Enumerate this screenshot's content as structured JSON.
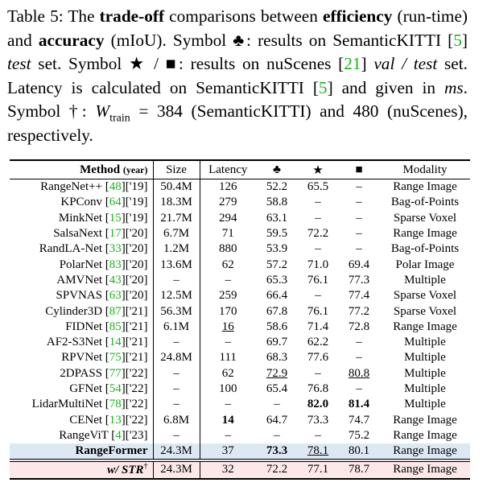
{
  "caption": {
    "parts": [
      "Table 5: The ",
      "trade-off",
      " comparisons between ",
      "efficiency",
      " (run-time) and ",
      "accuracy",
      " (mIoU). Symbol ♣: results on SemanticKITTI [",
      "5",
      "] ",
      "test",
      " set. Symbol ★ / ■: results on nuScenes [",
      "21",
      "] ",
      "val / test",
      " set. Latency is calculated on SemanticKITTI [",
      "5",
      "] and given in ",
      "ms",
      ". Symbol †: ",
      "W",
      "train",
      " = 384 (SemanticKITTI) and 480 (nuScenes), respectively."
    ]
  },
  "table": {
    "header": [
      "Method",
      "(year)",
      "Size",
      "Latency",
      "♣",
      "★",
      "■",
      "Modality"
    ],
    "rows": [
      {
        "method": [
          "RangeNet++ [",
          "48",
          "]['19]"
        ],
        "cells": [
          "50.4M",
          "126",
          "52.2",
          "65.5",
          "–",
          "Range Image"
        ]
      },
      {
        "method": [
          "KPConv [",
          "64",
          "]['19]"
        ],
        "cells": [
          "18.3M",
          "279",
          "58.8",
          "–",
          "–",
          "Bag-of-Points"
        ]
      },
      {
        "method": [
          "MinkNet [",
          "15",
          "]['19]"
        ],
        "cells": [
          "21.7M",
          "294",
          "63.1",
          "–",
          "–",
          "Sparse Voxel"
        ]
      },
      {
        "method": [
          "SalsaNext [",
          "17",
          "]['20]"
        ],
        "cells": [
          "6.7M",
          "71",
          "59.5",
          "72.2",
          "–",
          "Range Image"
        ]
      },
      {
        "method": [
          "RandLA-Net [",
          "33",
          "]['20]"
        ],
        "cells": [
          "1.2M",
          "880",
          "53.9",
          "–",
          "–",
          "Bag-of-Points"
        ]
      },
      {
        "method": [
          "PolarNet [",
          "83",
          "]['20]"
        ],
        "cells": [
          "13.6M",
          "62",
          "57.2",
          "71.0",
          "69.4",
          "Polar Image"
        ]
      },
      {
        "method": [
          "AMVNet [",
          "43",
          "]['20]"
        ],
        "cells": [
          "–",
          "–",
          "65.3",
          "76.1",
          "77.3",
          "Multiple"
        ]
      },
      {
        "method": [
          "SPVNAS [",
          "63",
          "]['20]"
        ],
        "cells": [
          "12.5M",
          "259",
          "66.4",
          "–",
          "77.4",
          "Sparse Voxel"
        ]
      },
      {
        "method": [
          "Cylinder3D [",
          "87",
          "]['21]"
        ],
        "cells": [
          "56.3M",
          "170",
          "67.8",
          "76.1",
          "77.2",
          "Sparse Voxel"
        ]
      },
      {
        "method": [
          "FIDNet [",
          "85",
          "]['21]"
        ],
        "cells": [
          "6.1M",
          "16",
          "58.6",
          "71.4",
          "72.8",
          "Range Image"
        ]
      },
      {
        "method": [
          "AF2-S3Net [",
          "14",
          "]['21]"
        ],
        "cells": [
          "–",
          "–",
          "69.7",
          "62.2",
          "–",
          "Multiple"
        ]
      },
      {
        "method": [
          "RPVNet [",
          "75",
          "]['21]"
        ],
        "cells": [
          "24.8M",
          "111",
          "68.3",
          "77.6",
          "–",
          "Multiple"
        ]
      },
      {
        "method": [
          "2DPASS [",
          "77",
          "]['22]"
        ],
        "cells": [
          "–",
          "62",
          "72.9",
          "–",
          "80.8",
          "Multiple"
        ]
      },
      {
        "method": [
          "GFNet [",
          "54",
          "]['22]"
        ],
        "cells": [
          "–",
          "100",
          "65.4",
          "76.8",
          "–",
          "Multiple"
        ]
      },
      {
        "method": [
          "LidarMultiNet [",
          "78",
          "]['22]"
        ],
        "cells": [
          "–",
          "–",
          "–",
          "82.0",
          "81.4",
          "Multiple"
        ]
      },
      {
        "method": [
          "CENet [",
          "13",
          "]['22]"
        ],
        "cells": [
          "6.8M",
          "14",
          "64.7",
          "73.3",
          "74.7",
          "Range Image"
        ]
      },
      {
        "method": [
          "RangeViT [",
          "4",
          "]['23]"
        ],
        "cells": [
          "–",
          "–",
          "–",
          "–",
          "75.2",
          "Range Image"
        ]
      },
      {
        "method": [
          "RangeFormer"
        ],
        "cells": [
          "24.3M",
          "37",
          "73.3",
          "78.1",
          "80.1",
          "Range Image"
        ]
      },
      {
        "method": [
          "w/ STR",
          "†"
        ],
        "cells": [
          "24.3M",
          "32",
          "72.2",
          "77.1",
          "78.7",
          "Range Image"
        ]
      }
    ]
  }
}
